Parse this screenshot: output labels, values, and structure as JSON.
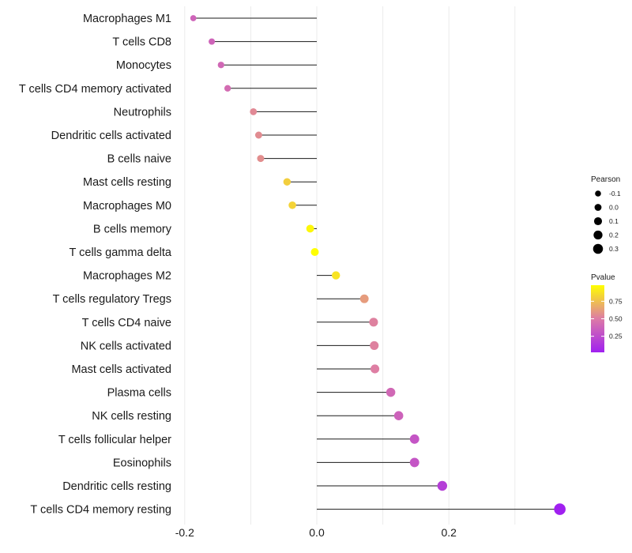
{
  "chart_data": {
    "type": "lollipop",
    "title": "",
    "xlabel": "",
    "ylabel": "",
    "xlim": [
      -0.2,
      0.37
    ],
    "x_ticks": [
      {
        "value": -0.2,
        "label": "-0.2"
      },
      {
        "value": 0.0,
        "label": "0.0"
      },
      {
        "value": 0.2,
        "label": "0.2"
      }
    ],
    "grid": true,
    "categories": [
      "Macrophages M1",
      "T cells CD8",
      "Monocytes",
      "T cells CD4 memory activated",
      "Neutrophils",
      "Dendritic cells activated",
      "B cells naive",
      "Mast cells resting",
      "Macrophages M0",
      "B cells memory",
      "T cells gamma delta",
      "Macrophages M2",
      "T cells regulatory  Tregs ",
      "T cells CD4 naive",
      "NK cells activated",
      "Mast cells activated",
      "Plasma cells",
      "NK cells resting",
      "T cells follicular helper",
      "Eosinophils",
      "Dendritic cells resting",
      "T cells CD4 memory resting"
    ],
    "pearson": [
      -0.187,
      -0.159,
      -0.145,
      -0.135,
      -0.096,
      -0.088,
      -0.085,
      -0.045,
      -0.037,
      -0.01,
      -0.003,
      0.029,
      0.072,
      0.086,
      0.087,
      0.088,
      0.112,
      0.124,
      0.148,
      0.148,
      0.19,
      0.368
    ],
    "pvalue": [
      0.38,
      0.38,
      0.4,
      0.42,
      0.55,
      0.56,
      0.57,
      0.8,
      0.82,
      0.95,
      0.98,
      0.88,
      0.62,
      0.52,
      0.52,
      0.51,
      0.4,
      0.37,
      0.3,
      0.3,
      0.18,
      0.02
    ],
    "legend": {
      "placement": "right",
      "size_title": "Pearson",
      "size_items": [
        {
          "value": -0.1,
          "label": "-0.1"
        },
        {
          "value": 0.0,
          "label": "0.0"
        },
        {
          "value": 0.1,
          "label": "0.1"
        },
        {
          "value": 0.2,
          "label": "0.2"
        },
        {
          "value": 0.3,
          "label": "0.3"
        }
      ],
      "color_title": "Pvalue",
      "color_range": [
        0.02,
        0.98
      ],
      "color_low": "#a020f0",
      "color_mid": "#dd7ba6",
      "color_high": "#ffff00",
      "color_ticks": [
        {
          "value": 0.25,
          "label": "0.25"
        },
        {
          "value": 0.5,
          "label": "0.50"
        },
        {
          "value": 0.75,
          "label": "0.75"
        }
      ]
    }
  }
}
